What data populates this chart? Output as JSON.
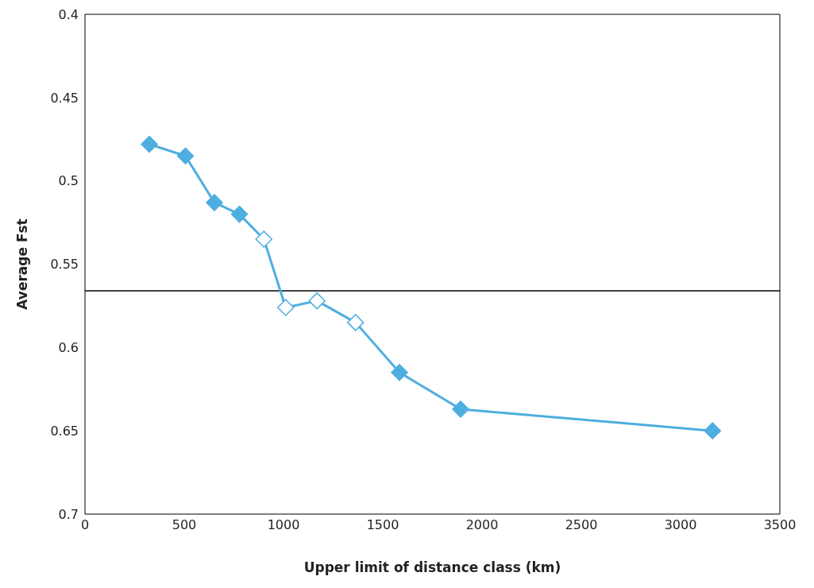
{
  "chart_data": {
    "type": "line",
    "xlabel": "Upper limit of distance class (km)",
    "ylabel": "Average Fst",
    "x": [
      324,
      506,
      652,
      778,
      901,
      1011,
      1169,
      1363,
      1584,
      1892,
      3161
    ],
    "series": [
      {
        "color": "#4eaee0",
        "values": [
          0.478,
          0.485,
          0.513,
          0.52,
          0.535,
          0.576,
          0.572,
          0.585,
          0.615,
          0.637,
          0.65
        ],
        "colors": [
          "#4eaee0",
          "#4eaee0",
          "#4eaee0",
          "#4eaee0",
          "#ffffff",
          "#ffffff",
          "#ffffff",
          "#ffffff",
          "#4eaee0",
          "#4eaee0",
          "#4eaee0"
        ]
      }
    ],
    "xlim": [
      0,
      3500
    ],
    "xticks": [
      0,
      500,
      1000,
      1500,
      2000,
      2500,
      3000,
      3500
    ],
    "ylim": [
      0.7,
      0.4
    ],
    "yticks": [
      0.4,
      0.45,
      0.5,
      0.55,
      0.6,
      0.65,
      0.7
    ],
    "ref_lines": [
      {
        "axis": "y",
        "value": 0.566,
        "color": "#000000"
      }
    ],
    "marker": "diamond",
    "line_style": "solid",
    "grid": false,
    "legend": false
  }
}
